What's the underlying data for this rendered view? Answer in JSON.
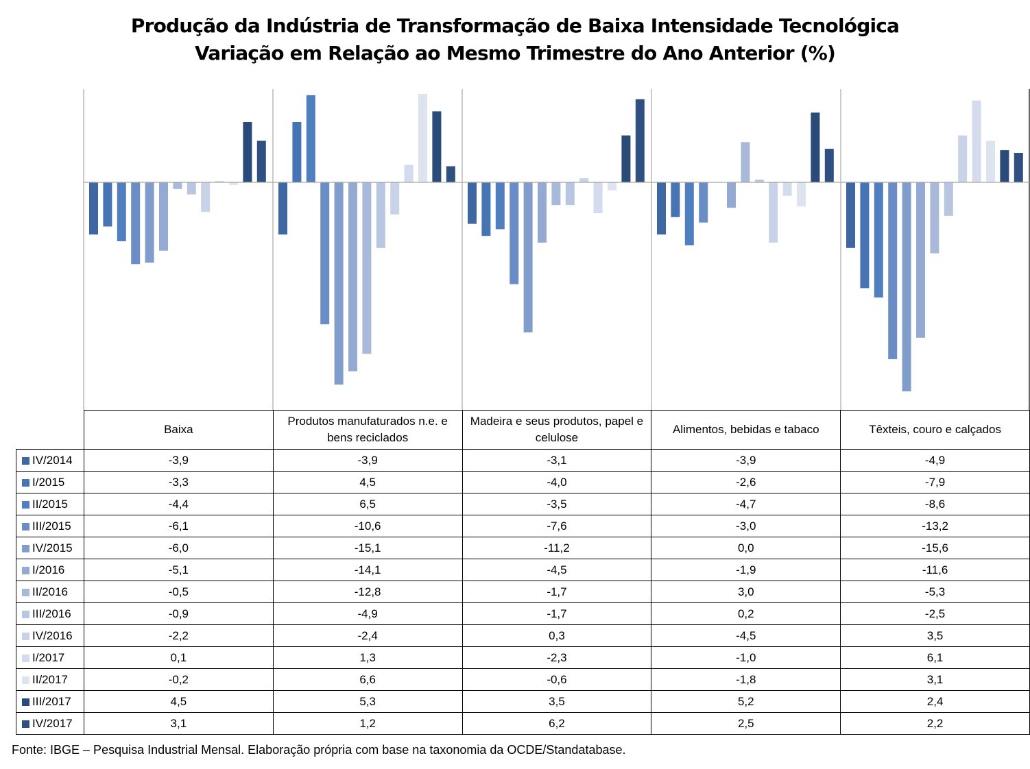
{
  "chart_data": {
    "type": "bar",
    "title_lines": [
      "Produção da Indústria de Transformação de Baixa Intensidade Tecnológica",
      "Variação em Relação ao Mesmo Trimestre do Ano Anterior (%)"
    ],
    "categories": [
      "Baixa",
      "Produtos manufaturados n.e. e bens reciclados",
      "Madeira e seus produtos, papel e celulose",
      "Alimentos, bebidas e tabaco",
      "Têxteis, couro e calçados"
    ],
    "series": [
      {
        "name": "IV/2014",
        "color": "#3f67a1",
        "values": [
          -3.9,
          -3.9,
          -3.1,
          -3.9,
          -4.9
        ]
      },
      {
        "name": "I/2015",
        "color": "#4775b4",
        "values": [
          -3.3,
          4.5,
          -4.0,
          -2.6,
          -7.9
        ]
      },
      {
        "name": "II/2015",
        "color": "#4f7fbf",
        "values": [
          -4.4,
          6.5,
          -3.5,
          -4.7,
          -8.6
        ]
      },
      {
        "name": "III/2015",
        "color": "#6a8dc6",
        "values": [
          -6.1,
          -10.6,
          -7.6,
          -3.0,
          -13.2
        ]
      },
      {
        "name": "IV/2015",
        "color": "#819dcc",
        "values": [
          -6.0,
          -15.1,
          -11.2,
          0.0,
          -15.6
        ]
      },
      {
        "name": "I/2016",
        "color": "#95aad3",
        "values": [
          -5.1,
          -14.1,
          -4.5,
          -1.9,
          -11.6
        ]
      },
      {
        "name": "II/2016",
        "color": "#a8b9da",
        "values": [
          -0.5,
          -12.8,
          -1.7,
          3.0,
          -5.3
        ]
      },
      {
        "name": "III/2016",
        "color": "#b9c6e1",
        "values": [
          -0.9,
          -4.9,
          -1.7,
          0.2,
          -2.5
        ]
      },
      {
        "name": "IV/2016",
        "color": "#c9d3e8",
        "values": [
          -2.2,
          -2.4,
          0.3,
          -4.5,
          3.5
        ]
      },
      {
        "name": "I/2017",
        "color": "#d3dbec",
        "values": [
          0.1,
          1.3,
          -2.3,
          -1.0,
          6.1
        ]
      },
      {
        "name": "II/2017",
        "color": "#dde3ef",
        "values": [
          -0.2,
          6.6,
          -0.6,
          -1.8,
          3.1
        ]
      },
      {
        "name": "III/2017",
        "color": "#2a4a78",
        "values": [
          4.5,
          5.3,
          3.5,
          5.2,
          2.4
        ]
      },
      {
        "name": "IV/2017",
        "color": "#2f5081",
        "values": [
          3.1,
          1.2,
          6.2,
          2.5,
          2.2
        ]
      }
    ],
    "table_values": [
      [
        "-3,9",
        "-3,9",
        "-3,1",
        "-3,9",
        "-4,9"
      ],
      [
        "-3,3",
        "4,5",
        "-4,0",
        "-2,6",
        "-7,9"
      ],
      [
        "-4,4",
        "6,5",
        "-3,5",
        "-4,7",
        "-8,6"
      ],
      [
        "-6,1",
        "-10,6",
        "-7,6",
        "-3,0",
        "-13,2"
      ],
      [
        "-6,0",
        "-15,1",
        "-11,2",
        "0,0",
        "-15,6"
      ],
      [
        "-5,1",
        "-14,1",
        "-4,5",
        "-1,9",
        "-11,6"
      ],
      [
        "-0,5",
        "-12,8",
        "-1,7",
        "3,0",
        "-5,3"
      ],
      [
        "-0,9",
        "-4,9",
        "-1,7",
        "0,2",
        "-2,5"
      ],
      [
        "-2,2",
        "-2,4",
        "0,3",
        "-4,5",
        "3,5"
      ],
      [
        "0,1",
        "1,3",
        "-2,3",
        "-1,0",
        "6,1"
      ],
      [
        "-0,2",
        "6,6",
        "-0,6",
        "-1,8",
        "3,1"
      ],
      [
        "4,5",
        "5,3",
        "3,5",
        "5,2",
        "2,4"
      ],
      [
        "3,1",
        "1,2",
        "6,2",
        "2,5",
        "2,2"
      ]
    ],
    "ylim": [
      -16.5,
      7.0
    ],
    "grid": false,
    "legend": "data table below chart",
    "source_note": "Fonte: IBGE – Pesquisa Industrial Mensal. Elaboração própria com base na taxonomia da OCDE/Standatabase."
  }
}
